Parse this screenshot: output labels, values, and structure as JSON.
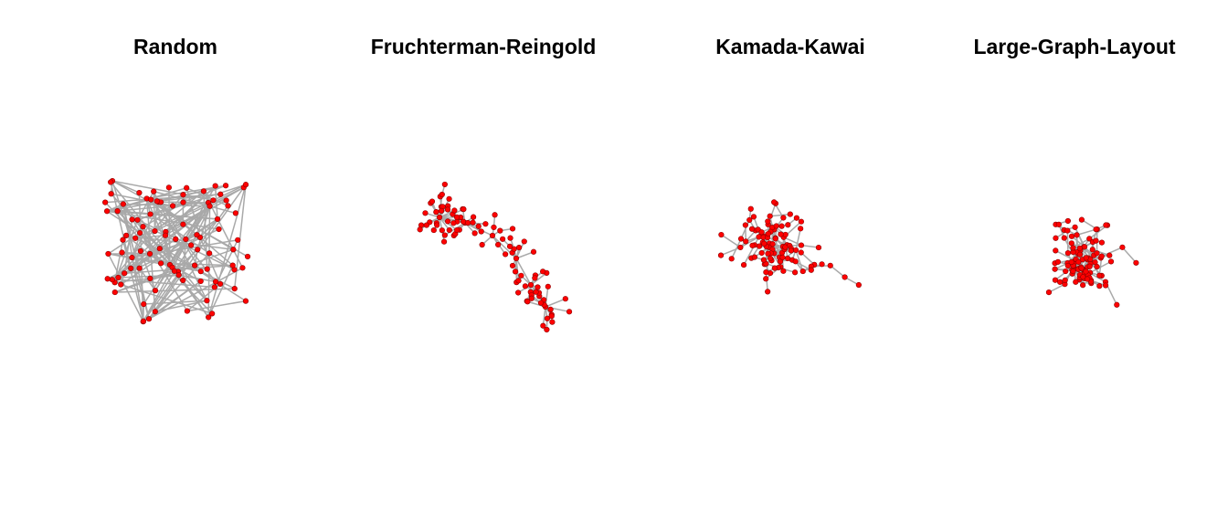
{
  "panels": [
    {
      "title": "Random",
      "layout": "random"
    },
    {
      "title": "Fruchterman-Reingold",
      "layout": "fr"
    },
    {
      "title": "Kamada-Kawai",
      "layout": "kk"
    },
    {
      "title": "Large-Graph-Layout",
      "layout": "lgl"
    }
  ],
  "style": {
    "node_color": "#ff0000",
    "node_border": "#8b0000",
    "edge_color": "#a9a9a9"
  }
}
